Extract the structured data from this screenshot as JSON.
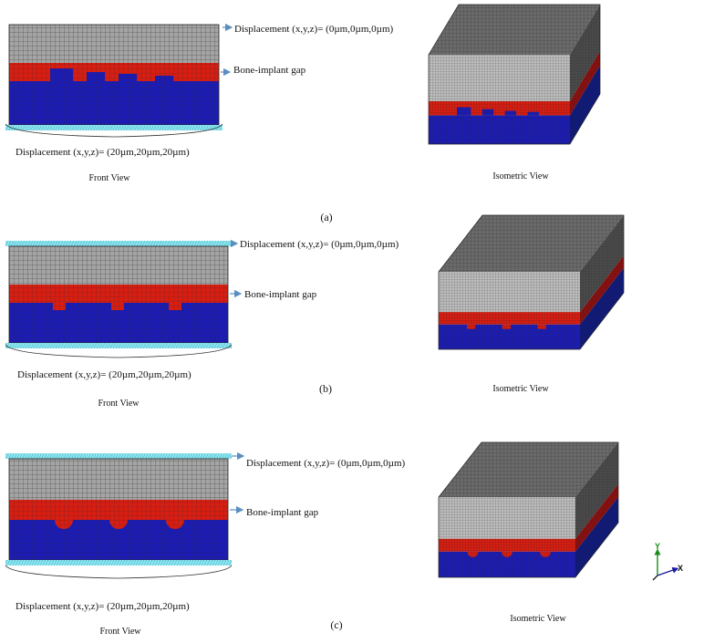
{
  "panels": [
    {
      "caption": "(a)",
      "front_view_label": "Front View",
      "isometric_view_label": "Isometric View",
      "top_displacement": "Displacement (x,y,z)= (0µm,0µm,0µm)",
      "bottom_displacement": "Displacement (x,y,z)= (20µm,20µm,20µm)",
      "gap_label": "Bone-implant gap",
      "interface_shape": "rectangular-steps"
    },
    {
      "caption": "(b)",
      "front_view_label": "Front View",
      "isometric_view_label": "Isometric View",
      "top_displacement": "Displacement (x,y,z)= (0µm,0µm,0µm)",
      "bottom_displacement": "Displacement (x,y,z)= (20µm,20µm,20µm)",
      "gap_label": "Bone-implant gap",
      "interface_shape": "square-teeth"
    },
    {
      "caption": "(c)",
      "front_view_label": "Front View",
      "isometric_view_label": "Isometric View",
      "top_displacement": "Displacement (x,y,z)= (0µm,0µm,0µm)",
      "bottom_displacement": "Displacement (x,y,z)= (20µm,20µm,20µm)",
      "gap_label": "Bone-implant gap",
      "interface_shape": "semicircular-bumps"
    }
  ],
  "axis_triad": {
    "y_label": "Y",
    "x_label": "X"
  },
  "colors": {
    "implant": "#a4a4a4",
    "mesh_line": "#3a3a3a",
    "gap": "#d81e12",
    "bone": "#1c1cb4",
    "boundary": "#8fe6f0",
    "arrow": "#5b8fc0",
    "iso_top": "#6a6a6a",
    "iso_side_dark": "#101a7a"
  }
}
